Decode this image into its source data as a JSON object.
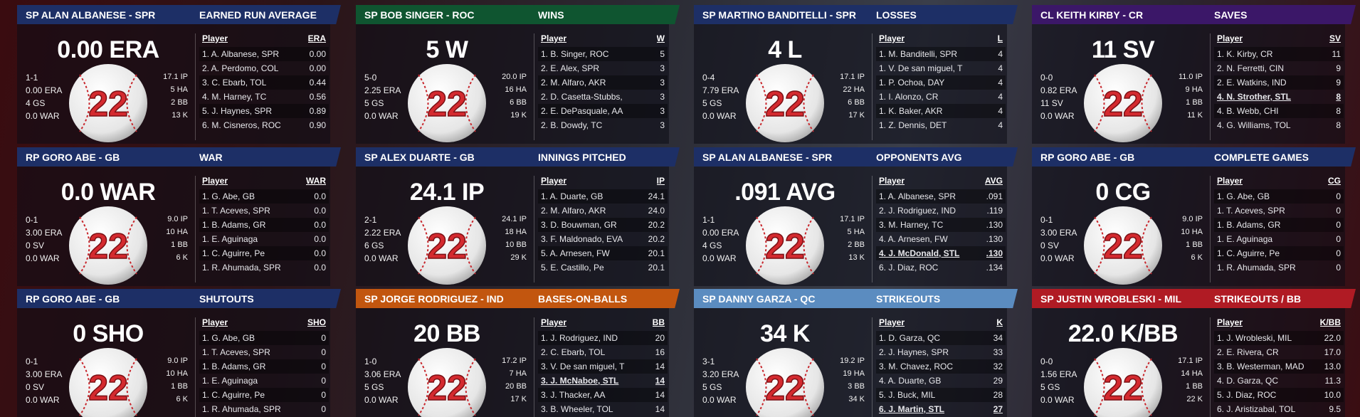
{
  "panels": [
    {
      "player": "SP ALAN ALBANESE - SPR",
      "stat": "EARNED RUN AVERAGE",
      "big": "0.00 ERA",
      "number": "22",
      "header_color": "#1d2f66",
      "left": [
        "1-1",
        "0.00 ERA",
        "4 GS",
        "0.0 WAR"
      ],
      "right": [
        "17.1 IP",
        "5 HA",
        "2 BB",
        "13 K"
      ],
      "columns": [
        "Player",
        "ERA"
      ],
      "rows": [
        [
          "1. A. Albanese, SPR",
          "0.00"
        ],
        [
          "2. A. Perdomo, COL",
          "0.00"
        ],
        [
          "3. C. Ebarb, TOL",
          "0.44"
        ],
        [
          "4. M. Harney, TC",
          "0.56"
        ],
        [
          "5. J. Haynes, SPR",
          "0.89"
        ],
        [
          "6. M. Cisneros, ROC",
          "0.90"
        ]
      ]
    },
    {
      "player": "SP BOB SINGER - ROC",
      "stat": "WINS",
      "big": "5 W",
      "number": "22",
      "header_color": "#0f5530",
      "left": [
        "5-0",
        "2.25 ERA",
        "5 GS",
        "0.0 WAR"
      ],
      "right": [
        "20.0 IP",
        "16 HA",
        "6 BB",
        "19 K"
      ],
      "columns": [
        "Player",
        "W"
      ],
      "rows": [
        [
          "1. B. Singer, ROC",
          "5"
        ],
        [
          "2. E. Alex, SPR",
          "3"
        ],
        [
          "2. M. Alfaro, AKR",
          "3"
        ],
        [
          "2. D. Casetta-Stubbs,",
          "3"
        ],
        [
          "2. E. DePasquale, AA",
          "3"
        ],
        [
          "2. B. Dowdy, TC",
          "3"
        ]
      ]
    },
    {
      "player": "SP MARTINO BANDITELLI - SPR",
      "stat": "LOSSES",
      "big": "4 L",
      "number": "22",
      "header_color": "#1d2f66",
      "left": [
        "0-4",
        "7.79 ERA",
        "5 GS",
        "0.0 WAR"
      ],
      "right": [
        "17.1 IP",
        "22 HA",
        "6 BB",
        "17 K"
      ],
      "columns": [
        "Player",
        "L"
      ],
      "rows": [
        [
          "1. M. Banditelli, SPR",
          "4"
        ],
        [
          "1. V. De san miguel, T",
          "4"
        ],
        [
          "1. P. Ochoa, DAY",
          "4"
        ],
        [
          "1. I. Alonzo, CR",
          "4"
        ],
        [
          "1. K. Baker, AKR",
          "4"
        ],
        [
          "1. Z. Dennis, DET",
          "4"
        ]
      ]
    },
    {
      "player": "CL KEITH KIRBY - CR",
      "stat": "SAVES",
      "big": "11 SV",
      "number": "22",
      "header_color": "#3b1768",
      "left": [
        "0-0",
        "0.82 ERA",
        "11 SV",
        "0.0 WAR"
      ],
      "right": [
        "11.0 IP",
        "9 HA",
        "1 BB",
        "11 K"
      ],
      "columns": [
        "Player",
        "SV"
      ],
      "underlined_row": 3,
      "rows": [
        [
          "1. K. Kirby, CR",
          "11"
        ],
        [
          "2. N. Ferretti, CIN",
          "9"
        ],
        [
          "2. E. Watkins, IND",
          "9"
        ],
        [
          "4. N. Strother, STL",
          "8"
        ],
        [
          "4. B. Webb, CHI",
          "8"
        ],
        [
          "4. G. Williams, TOL",
          "8"
        ]
      ]
    },
    {
      "player": "RP GORO ABE - GB",
      "stat": "WAR",
      "big": "0.0 WAR",
      "number": "22",
      "header_color": "#1d2f66",
      "left": [
        "0-1",
        "3.00 ERA",
        "0 SV",
        "0.0 WAR"
      ],
      "right": [
        "9.0 IP",
        "10 HA",
        "1 BB",
        "6 K"
      ],
      "columns": [
        "Player",
        "WAR"
      ],
      "rows": [
        [
          "1. G. Abe, GB",
          "0.0"
        ],
        [
          "1. T. Aceves, SPR",
          "0.0"
        ],
        [
          "1. B. Adams, GR",
          "0.0"
        ],
        [
          "1. E. Aguinaga",
          "0.0"
        ],
        [
          "1. C. Aguirre, Pe",
          "0.0"
        ],
        [
          "1. R. Ahumada, SPR",
          "0.0"
        ]
      ]
    },
    {
      "player": "SP ALEX DUARTE - GB",
      "stat": "INNINGS PITCHED",
      "big": "24.1 IP",
      "number": "22",
      "header_color": "#1d2f66",
      "left": [
        "2-1",
        "2.22 ERA",
        "6 GS",
        "0.0 WAR"
      ],
      "right": [
        "24.1 IP",
        "18 HA",
        "10 BB",
        "29 K"
      ],
      "columns": [
        "Player",
        "IP"
      ],
      "rows": [
        [
          "1. A. Duarte, GB",
          "24.1"
        ],
        [
          "2. M. Alfaro, AKR",
          "24.0"
        ],
        [
          "3. D. Bouwman, GR",
          "20.2"
        ],
        [
          "3. F. Maldonado, EVA",
          "20.2"
        ],
        [
          "5. A. Arnesen, FW",
          "20.1"
        ],
        [
          "5. E. Castillo, Pe",
          "20.1"
        ]
      ]
    },
    {
      "player": "SP ALAN ALBANESE - SPR",
      "stat": "OPPONENTS AVG",
      "big": ".091 AVG",
      "number": "22",
      "header_color": "#1d2f66",
      "left": [
        "1-1",
        "0.00 ERA",
        "4 GS",
        "0.0 WAR"
      ],
      "right": [
        "17.1 IP",
        "5 HA",
        "2 BB",
        "13 K"
      ],
      "columns": [
        "Player",
        "AVG"
      ],
      "underlined_row": 4,
      "rows": [
        [
          "1. A. Albanese, SPR",
          ".091"
        ],
        [
          "2. J. Rodriguez, IND",
          ".119"
        ],
        [
          "3. M. Harney, TC",
          ".130"
        ],
        [
          "4. A. Arnesen, FW",
          ".130"
        ],
        [
          "4. J. McDonald, STL",
          ".130"
        ],
        [
          "6. J. Diaz, ROC",
          ".134"
        ]
      ]
    },
    {
      "player": "RP GORO ABE - GB",
      "stat": "COMPLETE GAMES",
      "big": "0 CG",
      "number": "22",
      "header_color": "#1d2f66",
      "left": [
        "0-1",
        "3.00 ERA",
        "0 SV",
        "0.0 WAR"
      ],
      "right": [
        "9.0 IP",
        "10 HA",
        "1 BB",
        "6 K"
      ],
      "columns": [
        "Player",
        "CG"
      ],
      "rows": [
        [
          "1. G. Abe, GB",
          "0"
        ],
        [
          "1. T. Aceves, SPR",
          "0"
        ],
        [
          "1. B. Adams, GR",
          "0"
        ],
        [
          "1. E. Aguinaga",
          "0"
        ],
        [
          "1. C. Aguirre, Pe",
          "0"
        ],
        [
          "1. R. Ahumada, SPR",
          "0"
        ]
      ]
    },
    {
      "player": "RP GORO ABE - GB",
      "stat": "SHUTOUTS",
      "big": "0 SHO",
      "number": "22",
      "header_color": "#1d2f66",
      "left": [
        "0-1",
        "3.00 ERA",
        "0 SV",
        "0.0 WAR"
      ],
      "right": [
        "9.0 IP",
        "10 HA",
        "1 BB",
        "6 K"
      ],
      "columns": [
        "Player",
        "SHO"
      ],
      "rows": [
        [
          "1. G. Abe, GB",
          "0"
        ],
        [
          "1. T. Aceves, SPR",
          "0"
        ],
        [
          "1. B. Adams, GR",
          "0"
        ],
        [
          "1. E. Aguinaga",
          "0"
        ],
        [
          "1. C. Aguirre, Pe",
          "0"
        ],
        [
          "1. R. Ahumada, SPR",
          "0"
        ]
      ]
    },
    {
      "player": "SP JORGE RODRIGUEZ - IND",
      "stat": "BASES-ON-BALLS",
      "big": "20 BB",
      "number": "22",
      "header_color": "#c2560f",
      "left": [
        "1-0",
        "3.06 ERA",
        "5 GS",
        "0.0 WAR"
      ],
      "right": [
        "17.2 IP",
        "7 HA",
        "20 BB",
        "17 K"
      ],
      "columns": [
        "Player",
        "BB"
      ],
      "underlined_row": 3,
      "rows": [
        [
          "1. J. Rodriguez, IND",
          "20"
        ],
        [
          "2. C. Ebarb, TOL",
          "16"
        ],
        [
          "3. V. De san miguel, T",
          "14"
        ],
        [
          "3. J. McNaboe, STL",
          "14"
        ],
        [
          "3. J. Thacker, AA",
          "14"
        ],
        [
          "3. B. Wheeler, TOL",
          "14"
        ]
      ]
    },
    {
      "player": "SP DANNY GARZA - QC",
      "stat": "STRIKEOUTS",
      "big": "34 K",
      "number": "22",
      "header_color": "#5b8cc0",
      "left": [
        "3-1",
        "3.20 ERA",
        "5 GS",
        "0.0 WAR"
      ],
      "right": [
        "19.2 IP",
        "19 HA",
        "3 BB",
        "34 K"
      ],
      "columns": [
        "Player",
        "K"
      ],
      "underlined_row": 5,
      "rows": [
        [
          "1. D. Garza, QC",
          "34"
        ],
        [
          "2. J. Haynes, SPR",
          "33"
        ],
        [
          "3. M. Chavez, ROC",
          "32"
        ],
        [
          "4. A. Duarte, GB",
          "29"
        ],
        [
          "5. J. Buck, MIL",
          "28"
        ],
        [
          "6. J. Martin, STL",
          "27"
        ]
      ]
    },
    {
      "player": "SP JUSTIN WROBLESKI - MIL",
      "stat": "STRIKEOUTS / BB",
      "big": "22.0 K/BB",
      "number": "22",
      "header_color": "#b01b24",
      "left": [
        "0-0",
        "1.56 ERA",
        "5 GS",
        "0.0 WAR"
      ],
      "right": [
        "17.1 IP",
        "14 HA",
        "1 BB",
        "22 K"
      ],
      "columns": [
        "Player",
        "K/BB"
      ],
      "rows": [
        [
          "1. J. Wrobleski, MIL",
          "22.0"
        ],
        [
          "2. E. Rivera, CR",
          "17.0"
        ],
        [
          "3. B. Westerman, MAD",
          "13.0"
        ],
        [
          "4. D. Garza, QC",
          "11.3"
        ],
        [
          "5. J. Diaz, ROC",
          "10.0"
        ],
        [
          "6. J. Aristizabal, TOL",
          "9.5"
        ]
      ]
    }
  ]
}
